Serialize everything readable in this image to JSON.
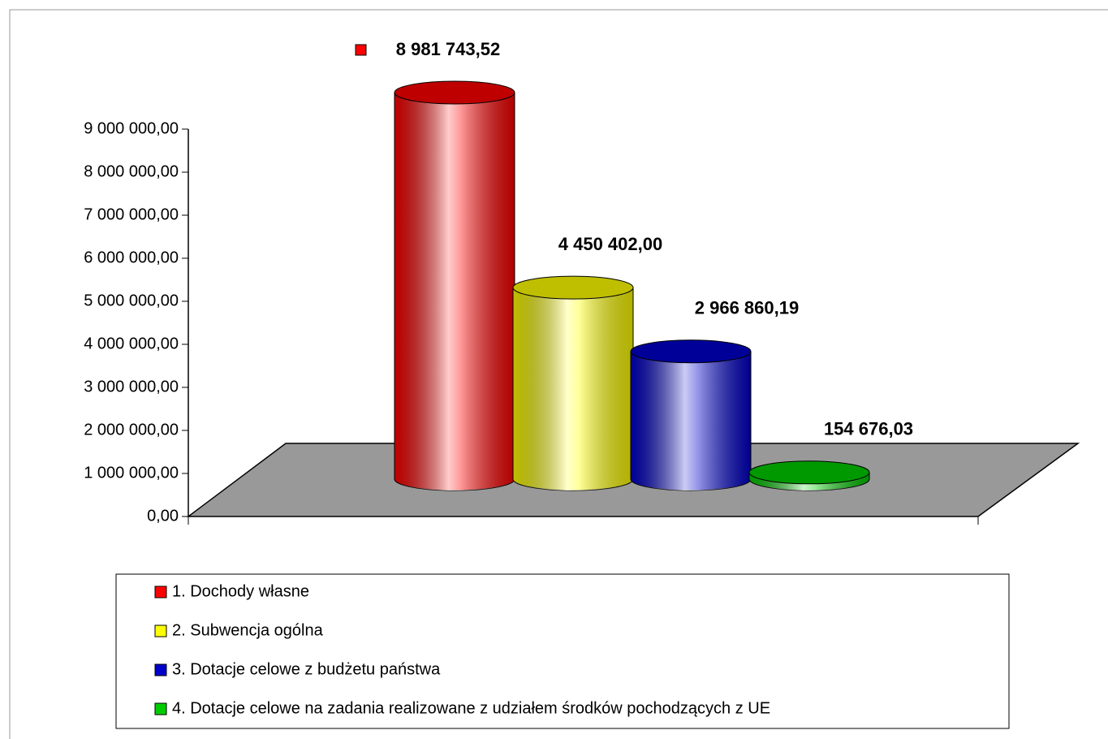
{
  "chart_data": {
    "type": "bar3d",
    "series": [
      {
        "name": "1. Dochody własne",
        "color": "#ff0000",
        "values": [
          8981743.52
        ],
        "value_labels": [
          "8 981 743,52"
        ]
      },
      {
        "name": "2. Subwencja ogólna",
        "color": "#ffff00",
        "values": [
          4450402.0
        ],
        "value_labels": [
          "4 450 402,00"
        ]
      },
      {
        "name": "3. Dotacje celowe z budżetu państwa",
        "color": "#0000cc",
        "values": [
          2966860.19
        ],
        "value_labels": [
          "2 966 860,19"
        ]
      },
      {
        "name": "4. Dotacje celowe na zadania realizowane z udziałem środków pochodzących z UE",
        "color": "#00cc00",
        "values": [
          154676.03
        ],
        "value_labels": [
          "154 676,03"
        ]
      }
    ],
    "ylim": [
      0,
      9000000
    ],
    "yticks": [
      {
        "value": 0,
        "label": "0,00"
      },
      {
        "value": 1000000,
        "label": "1 000 000,00"
      },
      {
        "value": 2000000,
        "label": "2 000 000,00"
      },
      {
        "value": 3000000,
        "label": "3 000 000,00"
      },
      {
        "value": 4000000,
        "label": "4 000 000,00"
      },
      {
        "value": 5000000,
        "label": "5 000 000,00"
      },
      {
        "value": 6000000,
        "label": "6 000 000,00"
      },
      {
        "value": 7000000,
        "label": "7 000 000,00"
      },
      {
        "value": 8000000,
        "label": "8 000 000,00"
      },
      {
        "value": 9000000,
        "label": "9 000 000,00"
      }
    ],
    "legend": "bottom"
  }
}
